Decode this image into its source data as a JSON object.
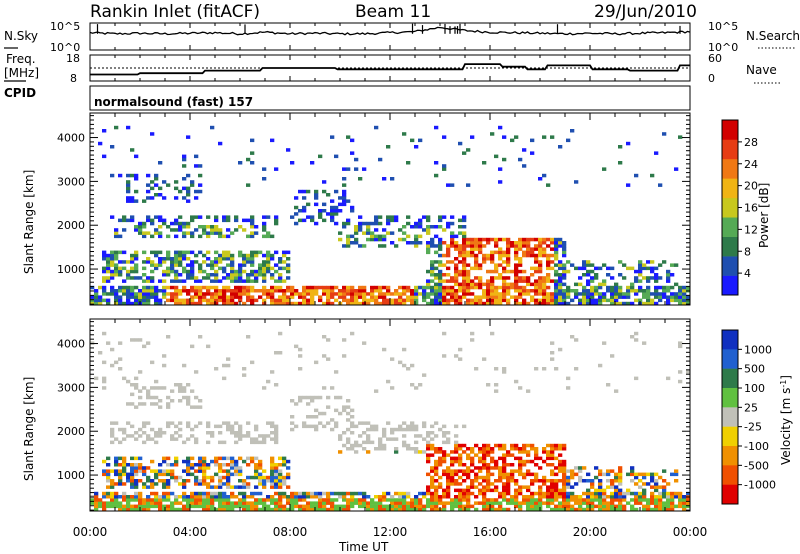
{
  "header": {
    "station": "Rankin Inlet (fitACF)",
    "beam": "Beam 11",
    "date": "29/Jun/2010"
  },
  "noise_panel": {
    "left_label": "N.Sky",
    "right_label": "N.Search",
    "left_ticks": [
      "10^5",
      "10^0"
    ],
    "right_ticks": [
      "10^5",
      "10^0"
    ]
  },
  "freq_panel": {
    "left_label_line1": "Freq.",
    "left_label_line2": "[MHz]",
    "right_label": "Nave",
    "left_ticks": [
      "18",
      "8"
    ],
    "right_ticks": [
      "60",
      "0"
    ]
  },
  "cpid": {
    "label": "CPID",
    "text": "normalsound (fast) 157"
  },
  "x_axis": {
    "label": "Time UT",
    "tick_labels": [
      "00:00",
      "04:00",
      "08:00",
      "12:00",
      "16:00",
      "20:00",
      "00:00"
    ]
  },
  "colors": {
    "power_scale": [
      "#1a1aff",
      "#1f4fb0",
      "#2e7a4a",
      "#55aa55",
      "#c8c81e",
      "#f0b414",
      "#f07814",
      "#e63c14",
      "#d20000"
    ],
    "velocity_scale": [
      "#1030c0",
      "#2060d0",
      "#2e7a4a",
      "#60c040",
      "#c0c0b8",
      "#f0d000",
      "#f09000",
      "#f05000",
      "#e00000"
    ]
  },
  "chart_data": [
    {
      "type": "line",
      "name": "noise",
      "x_unit": "hours UT",
      "x": [
        0,
        1,
        2,
        3,
        4,
        5,
        6,
        7,
        8,
        9,
        10,
        11,
        12,
        13,
        14,
        15,
        16,
        17,
        18,
        19,
        20,
        21,
        22,
        23,
        24
      ],
      "series": [
        {
          "values": [
            3.2,
            3.0,
            3.1,
            3.0,
            3.1,
            3.2,
            3.0,
            3.3,
            3.0,
            3.1,
            3.0,
            3.0,
            3.2,
            3.4,
            4.2,
            3.6,
            3.3,
            3.2,
            3.1,
            3.0,
            3.1,
            3.0,
            3.1,
            3.2,
            3.4
          ]
        }
      ],
      "ylim": [
        0,
        5
      ],
      "log_scale": true
    },
    {
      "type": "line",
      "name": "frequency",
      "x_unit": "hours UT",
      "x": [
        0,
        1.9,
        2.0,
        4.5,
        4.6,
        6.8,
        6.9,
        9.8,
        9.9,
        14.9,
        15.0,
        16.4,
        16.5,
        17.4,
        17.5,
        18.2,
        18.3,
        20.0,
        20.1,
        21.5,
        21.6,
        23.5,
        23.6,
        24
      ],
      "series": [
        {
          "values": [
            10.5,
            10.5,
            11,
            11,
            12,
            12,
            13,
            13,
            12.5,
            12.5,
            14.5,
            14.5,
            13.5,
            13.5,
            12.5,
            12.5,
            14,
            14,
            12.5,
            12.5,
            12,
            12,
            14,
            14
          ]
        }
      ],
      "ylim": [
        8,
        18
      ]
    },
    {
      "type": "heatmap",
      "name": "power",
      "title": "",
      "xlabel": "Time UT",
      "ylabel": "Slant Range [km]",
      "x_ticks": [
        "00:00",
        "04:00",
        "08:00",
        "12:00",
        "16:00",
        "20:00",
        "00:00"
      ],
      "y_ticks": [
        1000,
        2000,
        3000,
        4000
      ],
      "ylim": [
        180,
        4560
      ],
      "colorbar_label": "Power [dB]",
      "colorbar_ticks": [
        4,
        8,
        12,
        16,
        20,
        24,
        28
      ]
    },
    {
      "type": "heatmap",
      "name": "velocity",
      "title": "",
      "xlabel": "Time UT",
      "ylabel": "Slant Range [km]",
      "x_ticks": [
        "00:00",
        "04:00",
        "08:00",
        "12:00",
        "16:00",
        "20:00",
        "00:00"
      ],
      "y_ticks": [
        1000,
        2000,
        3000,
        4000
      ],
      "ylim": [
        180,
        4560
      ],
      "colorbar_label": "Velocity [m s-1]",
      "colorbar_ticks": [
        1000,
        500,
        100,
        25,
        -25,
        -100,
        -500,
        -1000
      ]
    }
  ]
}
